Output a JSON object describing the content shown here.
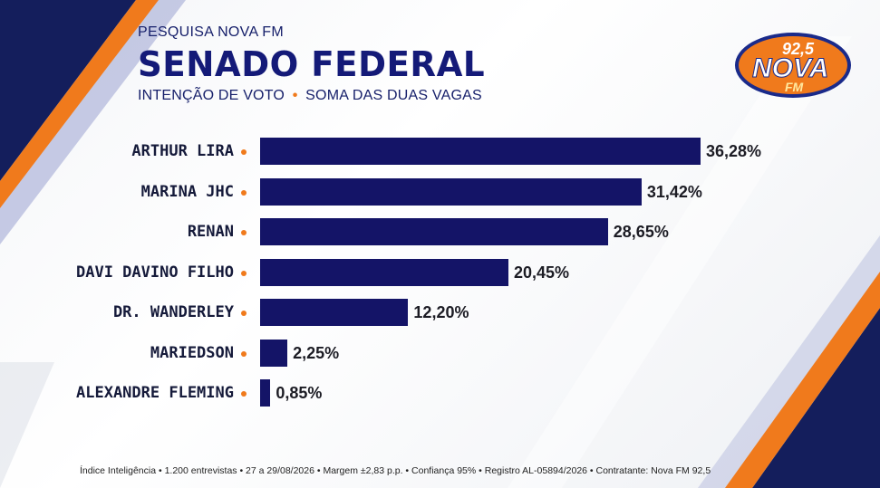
{
  "header": {
    "kicker": "PESQUISA NOVA FM",
    "title": "SENADO FEDERAL",
    "subtitle_part1": "INTENÇÃO DE VOTO",
    "subtitle_sep": "•",
    "subtitle_part2": "SOMA DAS DUAS VAGAS"
  },
  "logo": {
    "line1": "92,5",
    "line2": "NOVA",
    "line3": "FM"
  },
  "colors": {
    "bar": "#141467",
    "accent": "#f07a1c",
    "title": "#141a78"
  },
  "chart_data": {
    "type": "bar",
    "orientation": "horizontal",
    "categories": [
      "ARTHUR LIRA",
      "MARINA JHC",
      "RENAN",
      "DAVI DAVINO FILHO",
      "DR. WANDERLEY",
      "MARIEDSON",
      "ALEXANDRE FLEMING"
    ],
    "values": [
      36.28,
      31.42,
      28.65,
      20.45,
      12.2,
      2.25,
      0.85
    ],
    "labels": [
      "36,28%",
      "31,42%",
      "28,65%",
      "20,45%",
      "12,20%",
      "2,25%",
      "0,85%"
    ],
    "title": "SENADO FEDERAL",
    "xlabel": "",
    "ylabel": "",
    "xlim": [
      0,
      36.28
    ],
    "grid": false
  },
  "footer": "Índice Inteligência • 1.200 entrevistas • 27 a 29/08/2026 • Margem ±2,83 p.p. • Confiança 95% • Registro AL-05894/2026 • Contratante: Nova FM 92,5"
}
